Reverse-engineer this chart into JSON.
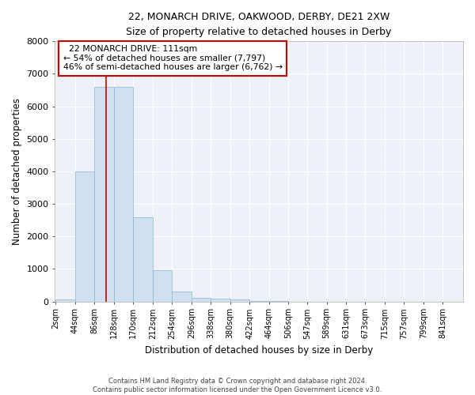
{
  "title": "22, MONARCH DRIVE, OAKWOOD, DERBY, DE21 2XW",
  "subtitle": "Size of property relative to detached houses in Derby",
  "xlabel": "Distribution of detached houses by size in Derby",
  "ylabel": "Number of detached properties",
  "bar_color": "#cfe0f0",
  "bar_edge_color": "#8ab4d4",
  "background_color": "#eef2f8",
  "grid_color": "#ffffff",
  "bin_edges": [
    2,
    44,
    86,
    128,
    170,
    212,
    254,
    296,
    338,
    380,
    422,
    464,
    506,
    547,
    589,
    631,
    673,
    715,
    757,
    799,
    841
  ],
  "bin_labels": [
    "2sqm",
    "44sqm",
    "86sqm",
    "128sqm",
    "170sqm",
    "212sqm",
    "254sqm",
    "296sqm",
    "338sqm",
    "380sqm",
    "422sqm",
    "464sqm",
    "506sqm",
    "547sqm",
    "589sqm",
    "631sqm",
    "673sqm",
    "715sqm",
    "757sqm",
    "799sqm",
    "841sqm"
  ],
  "bar_heights": [
    50,
    4000,
    6600,
    6600,
    2600,
    950,
    300,
    120,
    75,
    50,
    15,
    8,
    0,
    0,
    0,
    0,
    0,
    0,
    0,
    0
  ],
  "ylim": [
    0,
    8000
  ],
  "yticks": [
    0,
    1000,
    2000,
    3000,
    4000,
    5000,
    6000,
    7000,
    8000
  ],
  "property_size": 111,
  "property_label": "22 MONARCH DRIVE: 111sqm",
  "pct_smaller": 54,
  "pct_larger": 46,
  "n_smaller": 7797,
  "n_larger": 6762,
  "red_line_color": "#cc0000",
  "annotation_box_color": "#cc0000",
  "footer_line1": "Contains HM Land Registry data © Crown copyright and database right 2024.",
  "footer_line2": "Contains public sector information licensed under the Open Government Licence v3.0."
}
